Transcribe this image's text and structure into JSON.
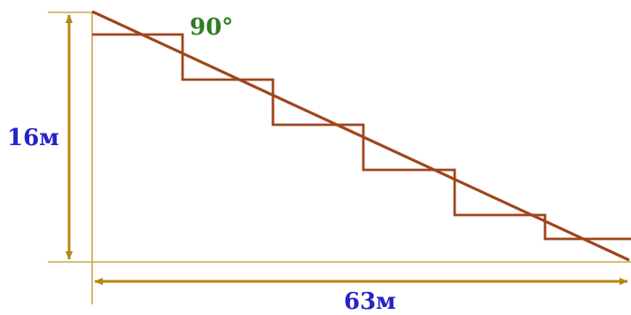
{
  "labels": {
    "height": "16м",
    "width": "63м",
    "angle": "90°"
  },
  "colors": {
    "stairs": "#a0451c",
    "dimension": "#b8860b",
    "thin": "#c9a64a",
    "measure_text": "#2323c8",
    "angle_text": "#2e7d1e"
  },
  "stairs": {
    "step_count": 6
  }
}
